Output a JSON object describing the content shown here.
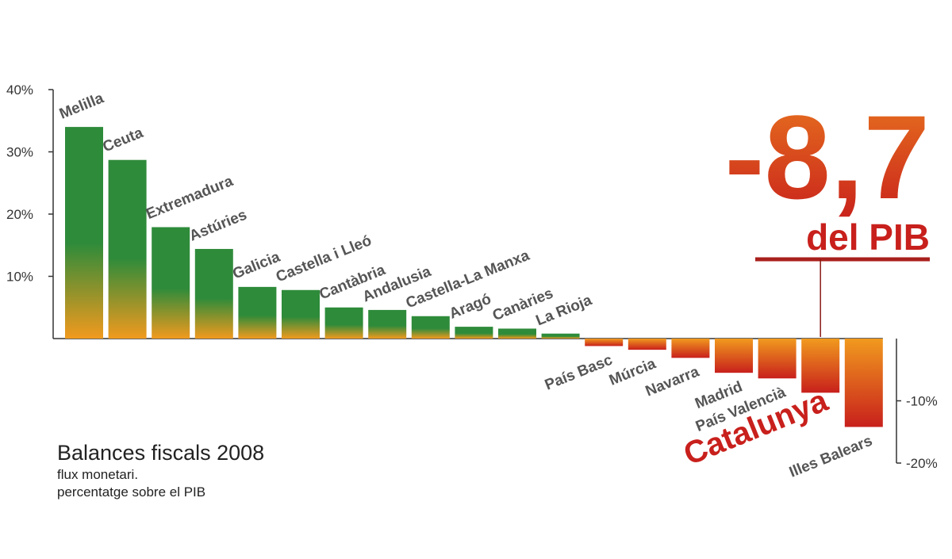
{
  "title": "Balances fiscals 2008",
  "subtitle_line1": "flux monetari.",
  "subtitle_line2": "percentatge sobre el PIB",
  "highlight": {
    "value": "-8,7",
    "suffix": "del PIB"
  },
  "colors": {
    "positive_top": "#2e8b3a",
    "positive_bottom": "#f19a1e",
    "negative_top": "#f19a1e",
    "negative_bottom": "#c8201c",
    "highlight_text": "#c8201c",
    "axis": "#333333"
  },
  "chart_data": {
    "type": "bar",
    "title": "Balances fiscals 2008",
    "ylabel": "",
    "xlabel": "",
    "ylim": [
      -20,
      40
    ],
    "y_ticks": [
      {
        "value": 40,
        "label": "40%"
      },
      {
        "value": 30,
        "label": "30%"
      },
      {
        "value": 20,
        "label": "20%"
      },
      {
        "value": 10,
        "label": "10%"
      },
      {
        "value": -10,
        "label": "-10%"
      },
      {
        "value": -20,
        "label": "-20%"
      }
    ],
    "categories": [
      "Melilla",
      "Ceuta",
      "Extremadura",
      "Astúries",
      "Galicia",
      "Castella i Lleó",
      "Cantàbria",
      "Andalusia",
      "Castella-La Manxa",
      "Aragó",
      "Canàries",
      "La Rioja",
      "País Basc",
      "Múrcia",
      "Navarra",
      "Madrid",
      "País Valencià",
      "Catalunya",
      "Illes Balears"
    ],
    "values": [
      34,
      28.7,
      17.9,
      14.4,
      8.3,
      7.8,
      5,
      4.6,
      3.6,
      1.9,
      1.6,
      0.8,
      -1.2,
      -1.8,
      -3.1,
      -5.5,
      -6.4,
      -8.7,
      -14.2
    ],
    "highlighted": "Catalunya",
    "grid": false
  }
}
